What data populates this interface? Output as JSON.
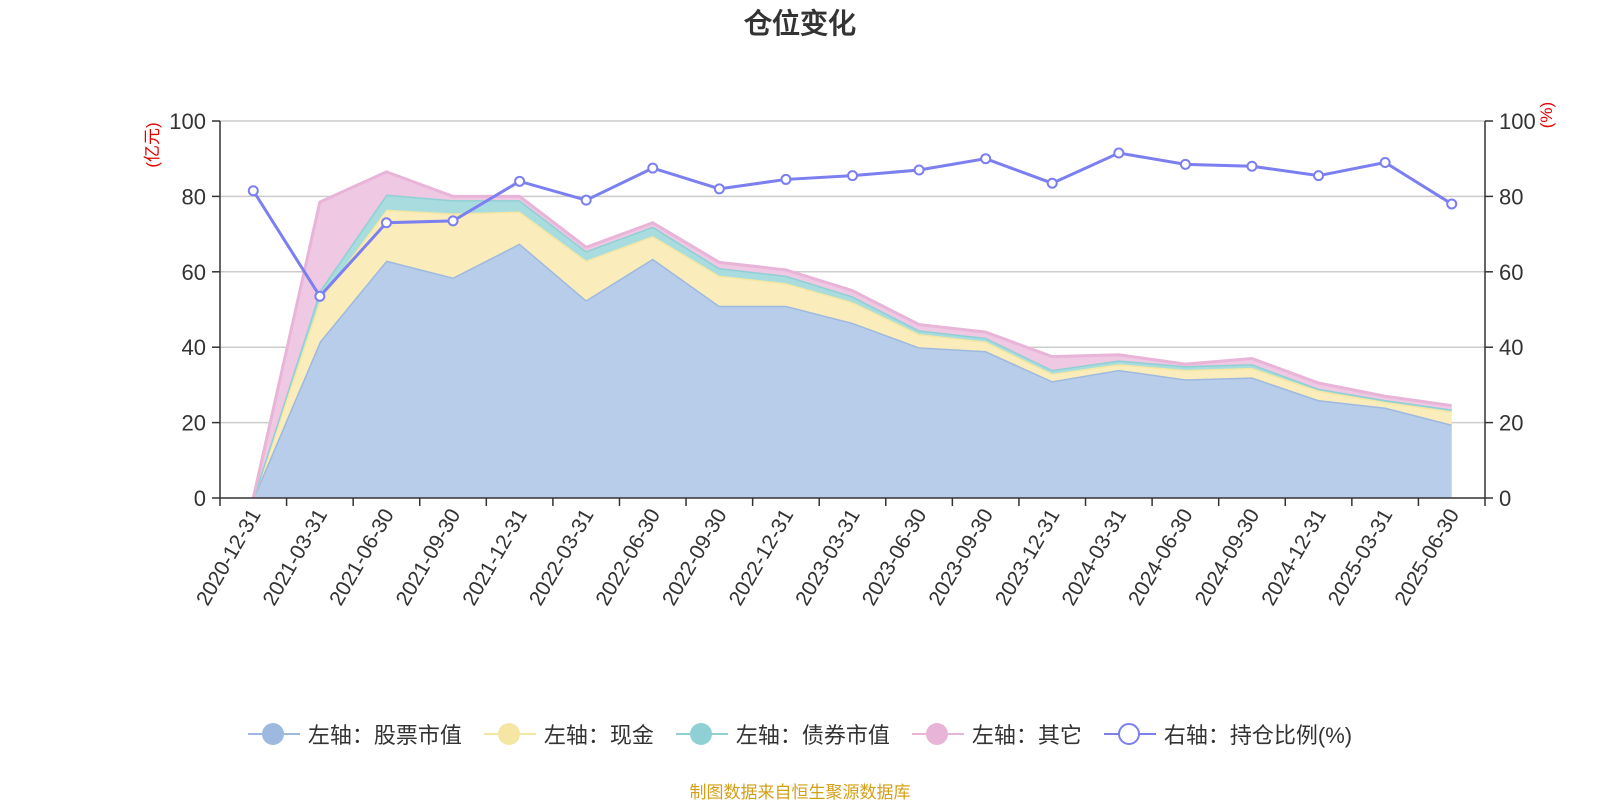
{
  "title": "仓位变化",
  "source": "制图数据来自恒生聚源数据库",
  "chart_data": {
    "type": "area",
    "title": "仓位变化",
    "categories": [
      "2020-12-31",
      "2021-03-31",
      "2021-06-30",
      "2021-09-30",
      "2021-12-31",
      "2022-03-31",
      "2022-06-30",
      "2022-09-30",
      "2022-12-31",
      "2023-03-31",
      "2023-06-30",
      "2023-09-30",
      "2023-12-31",
      "2024-03-31",
      "2024-06-30",
      "2024-09-30",
      "2024-12-31",
      "2025-03-31",
      "2025-06-30"
    ],
    "y_left": {
      "label": "(亿元)",
      "ylim": [
        0,
        100
      ],
      "ticks": [
        0,
        20,
        40,
        60,
        80,
        100
      ]
    },
    "y_right": {
      "label": "(%)",
      "ylim": [
        0,
        100
      ],
      "ticks": [
        0,
        20,
        40,
        60,
        80,
        100
      ]
    },
    "series": [
      {
        "name": "左轴：股票市值",
        "axis": "left",
        "stacked": true,
        "color": "#9db9e0",
        "fill": "#b8cdea",
        "values": [
          0,
          41.5,
          63,
          58.5,
          67.5,
          52.5,
          63.5,
          51,
          51,
          46.5,
          40,
          39,
          31,
          34,
          31.5,
          32,
          26,
          24,
          19.5
        ]
      },
      {
        "name": "左轴：现金",
        "axis": "left",
        "stacked": true,
        "color": "#f5e6a3",
        "fill": "#faecbb",
        "values": [
          0,
          11,
          13.5,
          17,
          8.5,
          10.5,
          6,
          8,
          6,
          5.5,
          3.5,
          2.5,
          2,
          1.5,
          2.5,
          2.5,
          2.5,
          1.5,
          3.5
        ]
      },
      {
        "name": "左轴：债券市值",
        "axis": "left",
        "stacked": true,
        "color": "#8fd0d4",
        "fill": "#a9dcde",
        "values": [
          0,
          2.5,
          4,
          3.5,
          3,
          2.5,
          2.5,
          2,
          2,
          1.5,
          1,
          1,
          1,
          1,
          1,
          1,
          0.5,
          0.5,
          0.5
        ]
      },
      {
        "name": "左轴：其它",
        "axis": "left",
        "stacked": true,
        "color": "#e8b4d8",
        "fill": "#efc8e3",
        "values": [
          0,
          23.5,
          6,
          1,
          1,
          1,
          1,
          1.5,
          1.5,
          1.5,
          1.5,
          1.5,
          3.5,
          1.5,
          0.5,
          1.5,
          1.5,
          1,
          1
        ]
      },
      {
        "name": "右轴：持仓比例(%)",
        "axis": "right",
        "type": "line",
        "color": "#7b7ff0",
        "values": [
          81.5,
          53.5,
          73,
          73.5,
          84,
          79,
          87.5,
          82,
          84.5,
          85.5,
          87,
          90,
          83.5,
          91.5,
          88.5,
          88,
          85.5,
          89,
          78
        ]
      }
    ],
    "legend_position": "bottom-center",
    "grid": true
  }
}
